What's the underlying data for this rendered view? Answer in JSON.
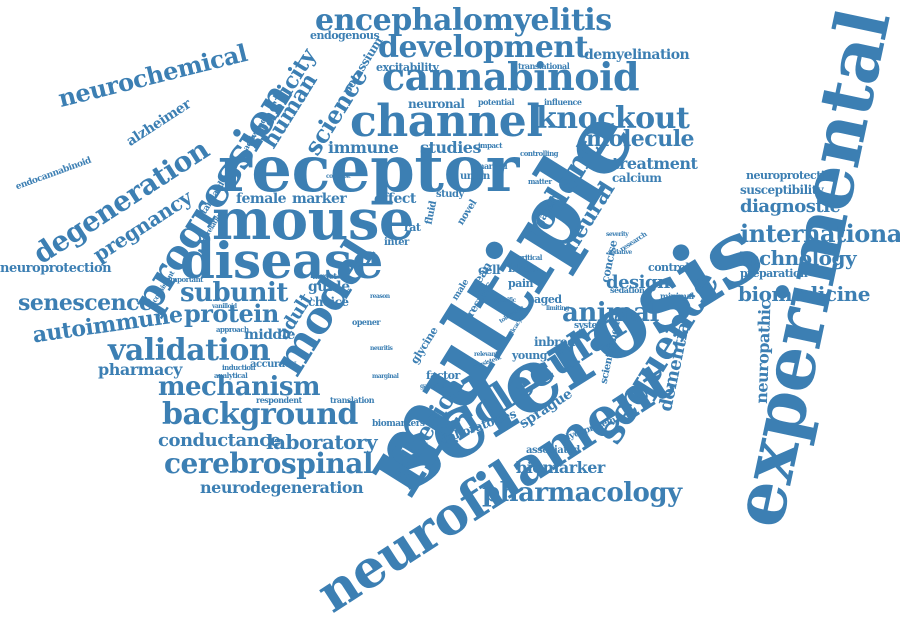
{
  "color": "#3c7fb3",
  "words": [
    {
      "text": "sclerosis",
      "weight": 1.0
    },
    {
      "text": "multiple",
      "weight": 0.97
    },
    {
      "text": "experimental",
      "weight": 0.93
    },
    {
      "text": "receptor",
      "weight": 0.86
    },
    {
      "text": "neurofilament",
      "weight": 0.83
    },
    {
      "text": "mouse",
      "weight": 0.78
    },
    {
      "text": "disease",
      "weight": 0.7
    },
    {
      "text": "model",
      "weight": 0.66
    },
    {
      "text": "molecular",
      "weight": 0.64
    },
    {
      "text": "progression",
      "weight": 0.62
    },
    {
      "text": "channel",
      "weight": 0.6
    },
    {
      "text": "cannabinoid",
      "weight": 0.56
    },
    {
      "text": "sequence",
      "weight": 0.55
    },
    {
      "text": "encephalomyelitis",
      "weight": 0.52
    },
    {
      "text": "development",
      "weight": 0.5
    },
    {
      "text": "rodent",
      "weight": 0.5
    },
    {
      "text": "validation",
      "weight": 0.5
    },
    {
      "text": "background",
      "weight": 0.48
    },
    {
      "text": "knockout",
      "weight": 0.46
    },
    {
      "text": "degeneration",
      "weight": 0.44
    },
    {
      "text": "cerebrospinal",
      "weight": 0.44
    },
    {
      "text": "pharmacology",
      "weight": 0.43
    },
    {
      "text": "mechanism",
      "weight": 0.42
    },
    {
      "text": "international",
      "weight": 0.4
    },
    {
      "text": "neurochemical",
      "weight": 0.4
    },
    {
      "text": "subunit",
      "weight": 0.4
    },
    {
      "text": "animal",
      "weight": 0.4
    },
    {
      "text": "protein",
      "weight": 0.38
    },
    {
      "text": "adhesion",
      "weight": 0.38
    },
    {
      "text": "science",
      "weight": 0.37
    },
    {
      "text": "autoimmune",
      "weight": 0.36
    },
    {
      "text": "senescence",
      "weight": 0.36
    },
    {
      "text": "laboratory",
      "weight": 0.36
    },
    {
      "text": "spasticity",
      "weight": 0.35
    },
    {
      "text": "molecule",
      "weight": 0.35
    },
    {
      "text": "pregnancy",
      "weight": 0.34
    },
    {
      "text": "human",
      "weight": 0.34
    },
    {
      "text": "technology",
      "weight": 0.33
    },
    {
      "text": "biomedicine",
      "weight": 0.33
    },
    {
      "text": "neural",
      "weight": 0.33
    },
    {
      "text": "conductance",
      "weight": 0.32
    },
    {
      "text": "dementia",
      "weight": 0.31
    },
    {
      "text": "diagnostic",
      "weight": 0.31
    },
    {
      "text": "adult",
      "weight": 0.31
    },
    {
      "text": "design",
      "weight": 0.3
    },
    {
      "text": "neurodegeneration",
      "weight": 0.28
    },
    {
      "text": "biomarker",
      "weight": 0.28
    },
    {
      "text": "neuropathic",
      "weight": 0.28
    },
    {
      "text": "immune",
      "weight": 0.26
    },
    {
      "text": "studies",
      "weight": 0.26
    },
    {
      "text": "treatment",
      "weight": 0.26
    },
    {
      "text": "pharmacy",
      "weight": 0.26
    },
    {
      "text": "demyelination",
      "weight": 0.24
    },
    {
      "text": "alzheimer",
      "weight": 0.24
    },
    {
      "text": "female",
      "weight": 0.24
    },
    {
      "text": "marker",
      "weight": 0.24
    },
    {
      "text": "effect",
      "weight": 0.24
    },
    {
      "text": "neuroprotection",
      "weight": 0.22
    },
    {
      "text": "susceptibility",
      "weight": 0.22
    },
    {
      "text": "calcium",
      "weight": 0.22
    },
    {
      "text": "sprague",
      "weight": 0.24
    },
    {
      "text": "laboratories",
      "weight": 0.22
    },
    {
      "text": "middle",
      "weight": 0.22
    },
    {
      "text": "guide",
      "weight": 0.22
    },
    {
      "text": "choice",
      "weight": 0.22
    },
    {
      "text": "neuronal",
      "weight": 0.22
    },
    {
      "text": "potassium",
      "weight": 0.22
    },
    {
      "text": "excitability",
      "weight": 0.2
    },
    {
      "text": "endogenous",
      "weight": 0.2
    },
    {
      "text": "neuroprotective",
      "weight": 0.2
    },
    {
      "text": "preparation",
      "weight": 0.19
    },
    {
      "text": "control",
      "weight": 0.22
    },
    {
      "text": "gated",
      "weight": 0.24
    },
    {
      "text": "concise",
      "weight": 0.22
    },
    {
      "text": "cell",
      "weight": 0.24
    },
    {
      "text": "bkca",
      "weight": 0.24
    },
    {
      "text": "mean",
      "weight": 0.24
    },
    {
      "text": "results",
      "weight": 0.24
    },
    {
      "text": "pain",
      "weight": 0.2
    },
    {
      "text": "aged",
      "weight": 0.22
    },
    {
      "text": "inbred",
      "weight": 0.24
    },
    {
      "text": "young",
      "weight": 0.22
    },
    {
      "text": "glycine",
      "weight": 0.22
    },
    {
      "text": "factor",
      "weight": 0.22
    },
    {
      "text": "scientific",
      "weight": 0.2
    },
    {
      "text": "genetic",
      "weight": 0.2
    },
    {
      "text": "associated",
      "weight": 0.2
    },
    {
      "text": "glycoprotein",
      "weight": 0.18
    },
    {
      "text": "biomarkers",
      "weight": 0.18
    },
    {
      "text": "respondent",
      "weight": 0.17
    },
    {
      "text": "translation",
      "weight": 0.17
    },
    {
      "text": "accuracy",
      "weight": 0.19
    },
    {
      "text": "translational",
      "weight": 0.17
    },
    {
      "text": "marked",
      "weight": 0.17
    },
    {
      "text": "union",
      "weight": 0.2
    },
    {
      "text": "study",
      "weight": 0.2
    },
    {
      "text": "novel",
      "weight": 0.2
    },
    {
      "text": "fluid",
      "weight": 0.2
    },
    {
      "text": "rat",
      "weight": 0.22
    },
    {
      "text": "inter",
      "weight": 0.2
    },
    {
      "text": "influence",
      "weight": 0.17
    },
    {
      "text": "potential",
      "weight": 0.17
    },
    {
      "text": "impact",
      "weight": 0.16
    },
    {
      "text": "controlling",
      "weight": 0.16
    },
    {
      "text": "matter",
      "weight": 0.16
    },
    {
      "text": "endocannabinoid",
      "weight": 0.17
    },
    {
      "text": "activated",
      "weight": 0.17
    },
    {
      "text": "standard",
      "weight": 0.17
    },
    {
      "text": "correlation",
      "weight": 0.16
    },
    {
      "text": "contrast",
      "weight": 0.15
    },
    {
      "text": "important",
      "weight": 0.16
    },
    {
      "text": "inconsistent",
      "weight": 0.16
    },
    {
      "text": "vanilloid",
      "weight": 0.15
    },
    {
      "text": "approach",
      "weight": 0.16
    },
    {
      "text": "induction",
      "weight": 0.16
    },
    {
      "text": "analytical",
      "weight": 0.16
    },
    {
      "text": "target",
      "weight": 0.18
    },
    {
      "text": "opener",
      "weight": 0.17
    },
    {
      "text": "reason",
      "weight": 0.15
    },
    {
      "text": "neuritis",
      "weight": 0.16
    },
    {
      "text": "marginal",
      "weight": 0.15
    },
    {
      "text": "ganglion",
      "weight": 0.15
    },
    {
      "text": "sedation",
      "weight": 0.17
    },
    {
      "text": "sedative",
      "weight": 0.16
    },
    {
      "text": "minimal",
      "weight": 0.17
    },
    {
      "text": "research",
      "weight": 0.18
    },
    {
      "text": "severity",
      "weight": 0.15
    },
    {
      "text": "critical",
      "weight": 0.16
    },
    {
      "text": "relevant",
      "weight": 0.15
    },
    {
      "text": "specific",
      "weight": 0.15
    },
    {
      "text": "male",
      "weight": 0.18
    },
    {
      "text": "system",
      "weight": 0.18
    },
    {
      "text": "efficacy",
      "weight": 0.15
    },
    {
      "text": "consistent",
      "weight": 0.15
    },
    {
      "text": "limiting",
      "weight": 0.15
    },
    {
      "text": "tolerance",
      "weight": 0.15
    }
  ]
}
